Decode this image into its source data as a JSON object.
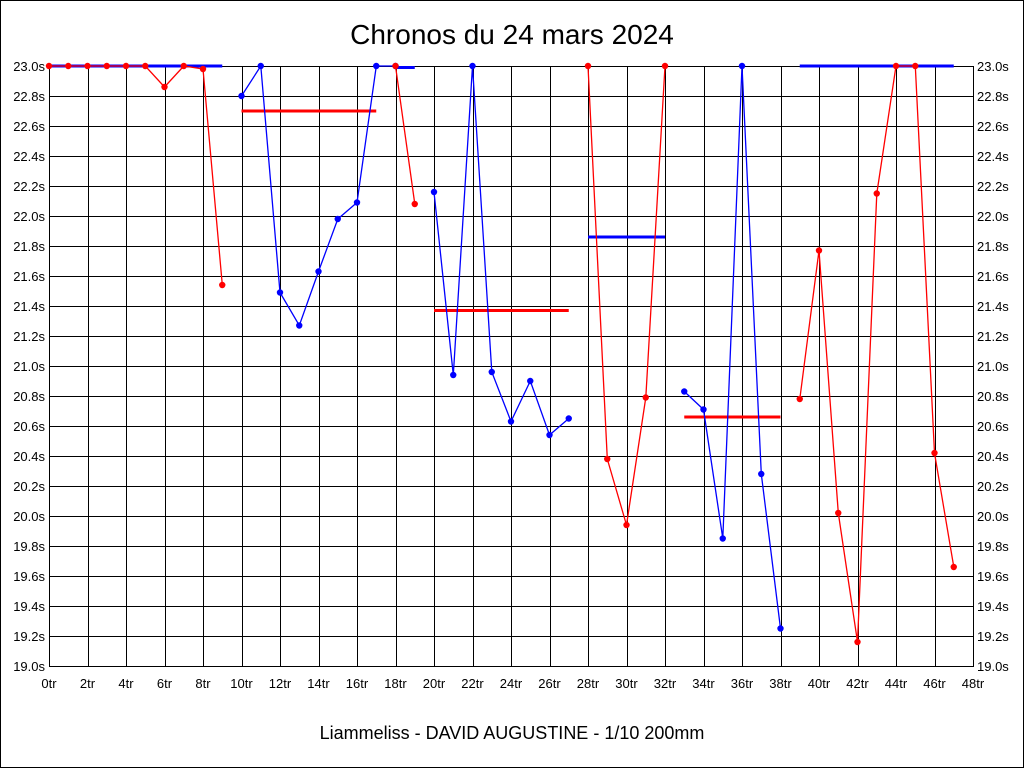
{
  "chart_data": {
    "type": "line",
    "title": "Chronos du 24 mars 2024",
    "footer": "Liammeliss - DAVID AUGUSTINE - 1/10 200mm",
    "xlim": [
      0,
      48
    ],
    "ylim": [
      19.0,
      23.0
    ],
    "x_ticks": [
      "0tr",
      "2tr",
      "4tr",
      "6tr",
      "8tr",
      "10tr",
      "12tr",
      "14tr",
      "16tr",
      "18tr",
      "20tr",
      "22tr",
      "24tr",
      "26tr",
      "28tr",
      "30tr",
      "32tr",
      "34tr",
      "36tr",
      "38tr",
      "40tr",
      "42tr",
      "44tr",
      "46tr",
      "48tr"
    ],
    "y_ticks": [
      "19.0s",
      "19.2s",
      "19.4s",
      "19.6s",
      "19.8s",
      "20.0s",
      "20.2s",
      "20.4s",
      "20.6s",
      "20.8s",
      "21.0s",
      "21.2s",
      "21.4s",
      "21.6s",
      "21.8s",
      "22.0s",
      "22.2s",
      "22.4s",
      "22.6s",
      "22.8s",
      "23.0s"
    ],
    "grid": true,
    "series": [
      {
        "color": "#ff0000",
        "x": [
          0,
          1,
          2,
          3,
          4,
          5,
          6,
          7,
          8,
          9
        ],
        "y": [
          23.0,
          23.0,
          23.0,
          23.0,
          23.0,
          23.0,
          22.86,
          23.0,
          22.98,
          21.54
        ]
      },
      {
        "color": "#0000ff",
        "x": [
          10,
          11,
          12,
          13,
          14,
          15,
          16,
          17,
          18
        ],
        "y": [
          22.8,
          23.0,
          21.49,
          21.27,
          21.63,
          21.98,
          22.09,
          23.0,
          23.0
        ]
      },
      {
        "color": "#ff0000",
        "x": [
          18,
          19
        ],
        "y": [
          23.0,
          22.08
        ]
      },
      {
        "color": "#0000ff",
        "x": [
          20,
          21,
          22,
          23,
          24,
          25,
          26,
          27
        ],
        "y": [
          22.16,
          20.94,
          23.0,
          20.96,
          20.63,
          20.9,
          20.54,
          20.65
        ]
      },
      {
        "color": "#ff0000",
        "x": [
          28,
          29,
          30,
          31,
          32
        ],
        "y": [
          23.0,
          20.38,
          19.94,
          20.79,
          23.0
        ]
      },
      {
        "color": "#0000ff",
        "x": [
          33,
          34,
          35,
          36,
          37,
          38
        ],
        "y": [
          20.83,
          20.71,
          19.85,
          23.0,
          20.28,
          19.25
        ]
      },
      {
        "color": "#ff0000",
        "x": [
          39,
          40,
          41,
          42,
          43,
          44,
          45,
          46,
          47
        ],
        "y": [
          20.78,
          21.77,
          20.02,
          19.16,
          22.15,
          23.0,
          23.0,
          20.42,
          19.66
        ]
      }
    ],
    "averages": [
      {
        "color": "#0000ff",
        "x": [
          0,
          9
        ],
        "y": 23.0
      },
      {
        "color": "#ff0000",
        "x": [
          10,
          17
        ],
        "y": 22.7
      },
      {
        "color": "#0000ff",
        "x": [
          18,
          19
        ],
        "y": 22.99
      },
      {
        "color": "#ff0000",
        "x": [
          20,
          27
        ],
        "y": 21.37
      },
      {
        "color": "#0000ff",
        "x": [
          28,
          32
        ],
        "y": 21.86
      },
      {
        "color": "#ff0000",
        "x": [
          33,
          38
        ],
        "y": 20.66
      },
      {
        "color": "#0000ff",
        "x": [
          39,
          47
        ],
        "y": 23.0
      }
    ]
  }
}
